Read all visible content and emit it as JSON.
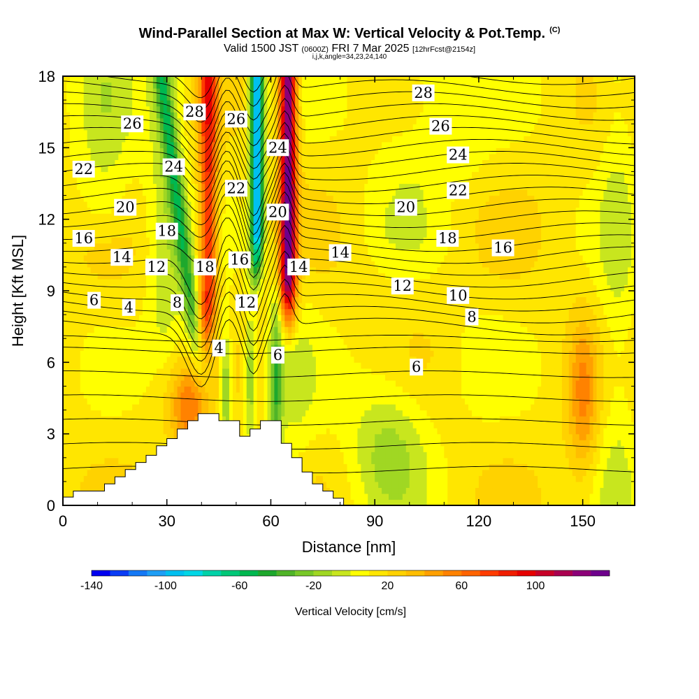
{
  "header": {
    "title": "Wind-Parallel Section at Max W: Vertical Velocity & Pot.Temp.",
    "title_tag": "(C)",
    "valid_prefix": "Valid 1500 JST",
    "valid_zulu": "(0600Z)",
    "valid_date": "FRI 7 Mar 2025",
    "forecast_note": "[12hrFcst@2154z]",
    "indices": "i,j,k,angle=34,23,24,140"
  },
  "chart_data": {
    "type": "heatmap",
    "xlabel": "Distance [nm]",
    "ylabel": "Height [Kft MSL]",
    "xlim": [
      0,
      165
    ],
    "ylim": [
      0,
      18
    ],
    "x_ticks": [
      "0",
      "30",
      "60",
      "90",
      "120",
      "150"
    ],
    "y_ticks": [
      "0",
      "3",
      "6",
      "9",
      "12",
      "15",
      "18"
    ],
    "grid": false,
    "colorbar": {
      "label": "Vertical Velocity [cm/s]",
      "tick_labels": [
        "-140",
        "-100",
        "-60",
        "-20",
        "20",
        "60",
        "100"
      ],
      "tick_values": [
        -140,
        -100,
        -60,
        -20,
        20,
        60,
        100
      ],
      "levels": [
        -140,
        -130,
        -120,
        -110,
        -100,
        -90,
        -80,
        -70,
        -60,
        -50,
        -40,
        -30,
        -20,
        -10,
        0,
        10,
        20,
        30,
        40,
        50,
        60,
        70,
        80,
        90,
        100,
        110,
        120,
        130,
        140
      ],
      "colors": [
        "#0000f0",
        "#0a3cf5",
        "#1478f5",
        "#1e9ef5",
        "#00c0f0",
        "#00d7e6",
        "#00d2a8",
        "#00c878",
        "#00b850",
        "#1ea82d",
        "#50b428",
        "#78c828",
        "#a0d723",
        "#c8e61e",
        "#ffff00",
        "#ffe600",
        "#ffd200",
        "#ffbe00",
        "#ffa000",
        "#ff8200",
        "#ff6400",
        "#ff3c00",
        "#f01e00",
        "#e60000",
        "#c80028",
        "#aa0050",
        "#8c0078",
        "#6e008c"
      ]
    },
    "terrain_profile_nm_kft": [
      [
        0,
        0.35
      ],
      [
        1.5,
        0.35
      ],
      [
        3,
        0.35
      ],
      [
        3,
        0.6
      ],
      [
        12,
        0.6
      ],
      [
        12,
        0.9
      ],
      [
        15,
        0.9
      ],
      [
        15,
        1.2
      ],
      [
        18,
        1.2
      ],
      [
        18,
        1.5
      ],
      [
        21,
        1.5
      ],
      [
        21,
        1.8
      ],
      [
        24,
        1.8
      ],
      [
        24,
        2.1
      ],
      [
        27,
        2.1
      ],
      [
        27,
        2.5
      ],
      [
        30,
        2.5
      ],
      [
        30,
        2.8
      ],
      [
        33,
        2.8
      ],
      [
        33,
        3.2
      ],
      [
        36,
        3.2
      ],
      [
        36,
        3.55
      ],
      [
        39,
        3.55
      ],
      [
        39,
        3.85
      ],
      [
        45,
        3.85
      ],
      [
        45,
        3.55
      ],
      [
        51,
        3.55
      ],
      [
        51,
        2.9
      ],
      [
        54,
        2.9
      ],
      [
        54,
        3.2
      ],
      [
        57,
        3.2
      ],
      [
        57,
        3.55
      ],
      [
        63,
        3.55
      ],
      [
        63,
        2.6
      ],
      [
        66,
        2.6
      ],
      [
        66,
        2.0
      ],
      [
        69,
        2.0
      ],
      [
        69,
        1.4
      ],
      [
        72,
        1.4
      ],
      [
        72,
        0.9
      ],
      [
        75,
        0.9
      ],
      [
        75,
        0.6
      ],
      [
        78,
        0.6
      ],
      [
        78,
        0.3
      ],
      [
        81,
        0.3
      ],
      [
        81,
        0
      ]
    ],
    "vertical_velocity_features": [
      {
        "name": "updraft plume A",
        "x_nm": 41,
        "y_from_kft": 3.5,
        "y_to_kft": 18,
        "peak_cm_s": 70
      },
      {
        "name": "updraft plume B",
        "x_nm": 65,
        "y_from_kft": 3.5,
        "y_to_kft": 18,
        "peak_cm_s": 120
      },
      {
        "name": "downdraft plume",
        "x_nm": 56,
        "y_from_kft": 8,
        "y_to_kft": 18,
        "peak_cm_s": -120
      },
      {
        "name": "downstream updraft",
        "x_nm": 150,
        "y_from_kft": 0.5,
        "y_to_kft": 7,
        "peak_cm_s": 50
      }
    ],
    "contour_labels": [
      {
        "text": "28",
        "x_nm": 104,
        "y_kft": 17.3
      },
      {
        "text": "28",
        "x_nm": 38,
        "y_kft": 16.5
      },
      {
        "text": "26",
        "x_nm": 20,
        "y_kft": 16.0
      },
      {
        "text": "26",
        "x_nm": 50,
        "y_kft": 16.2
      },
      {
        "text": "26",
        "x_nm": 109,
        "y_kft": 15.9
      },
      {
        "text": "24",
        "x_nm": 32,
        "y_kft": 14.2
      },
      {
        "text": "24",
        "x_nm": 62,
        "y_kft": 15.0
      },
      {
        "text": "24",
        "x_nm": 114,
        "y_kft": 14.7
      },
      {
        "text": "22",
        "x_nm": 6,
        "y_kft": 14.1
      },
      {
        "text": "22",
        "x_nm": 50,
        "y_kft": 13.3
      },
      {
        "text": "22",
        "x_nm": 114,
        "y_kft": 13.2
      },
      {
        "text": "20",
        "x_nm": 18,
        "y_kft": 12.5
      },
      {
        "text": "20",
        "x_nm": 62,
        "y_kft": 12.3
      },
      {
        "text": "20",
        "x_nm": 99,
        "y_kft": 12.5
      },
      {
        "text": "18",
        "x_nm": 30,
        "y_kft": 11.5
      },
      {
        "text": "18",
        "x_nm": 41,
        "y_kft": 10.0
      },
      {
        "text": "18",
        "x_nm": 111,
        "y_kft": 11.2
      },
      {
        "text": "16",
        "x_nm": 6,
        "y_kft": 11.2
      },
      {
        "text": "16",
        "x_nm": 51,
        "y_kft": 10.3
      },
      {
        "text": "16",
        "x_nm": 127,
        "y_kft": 10.8
      },
      {
        "text": "14",
        "x_nm": 17,
        "y_kft": 10.4
      },
      {
        "text": "14",
        "x_nm": 68,
        "y_kft": 10.0
      },
      {
        "text": "14",
        "x_nm": 80,
        "y_kft": 10.6
      },
      {
        "text": "12",
        "x_nm": 27,
        "y_kft": 10.0
      },
      {
        "text": "12",
        "x_nm": 53,
        "y_kft": 8.5
      },
      {
        "text": "12",
        "x_nm": 98,
        "y_kft": 9.2
      },
      {
        "text": "10",
        "x_nm": 114,
        "y_kft": 8.8
      },
      {
        "text": "8",
        "x_nm": 33,
        "y_kft": 8.5
      },
      {
        "text": "8",
        "x_nm": 118,
        "y_kft": 7.9
      },
      {
        "text": "6",
        "x_nm": 9,
        "y_kft": 8.6
      },
      {
        "text": "6",
        "x_nm": 62,
        "y_kft": 6.3
      },
      {
        "text": "6",
        "x_nm": 102,
        "y_kft": 5.8
      },
      {
        "text": "4",
        "x_nm": 19,
        "y_kft": 8.3
      },
      {
        "text": "4",
        "x_nm": 45,
        "y_kft": 6.6
      }
    ]
  }
}
